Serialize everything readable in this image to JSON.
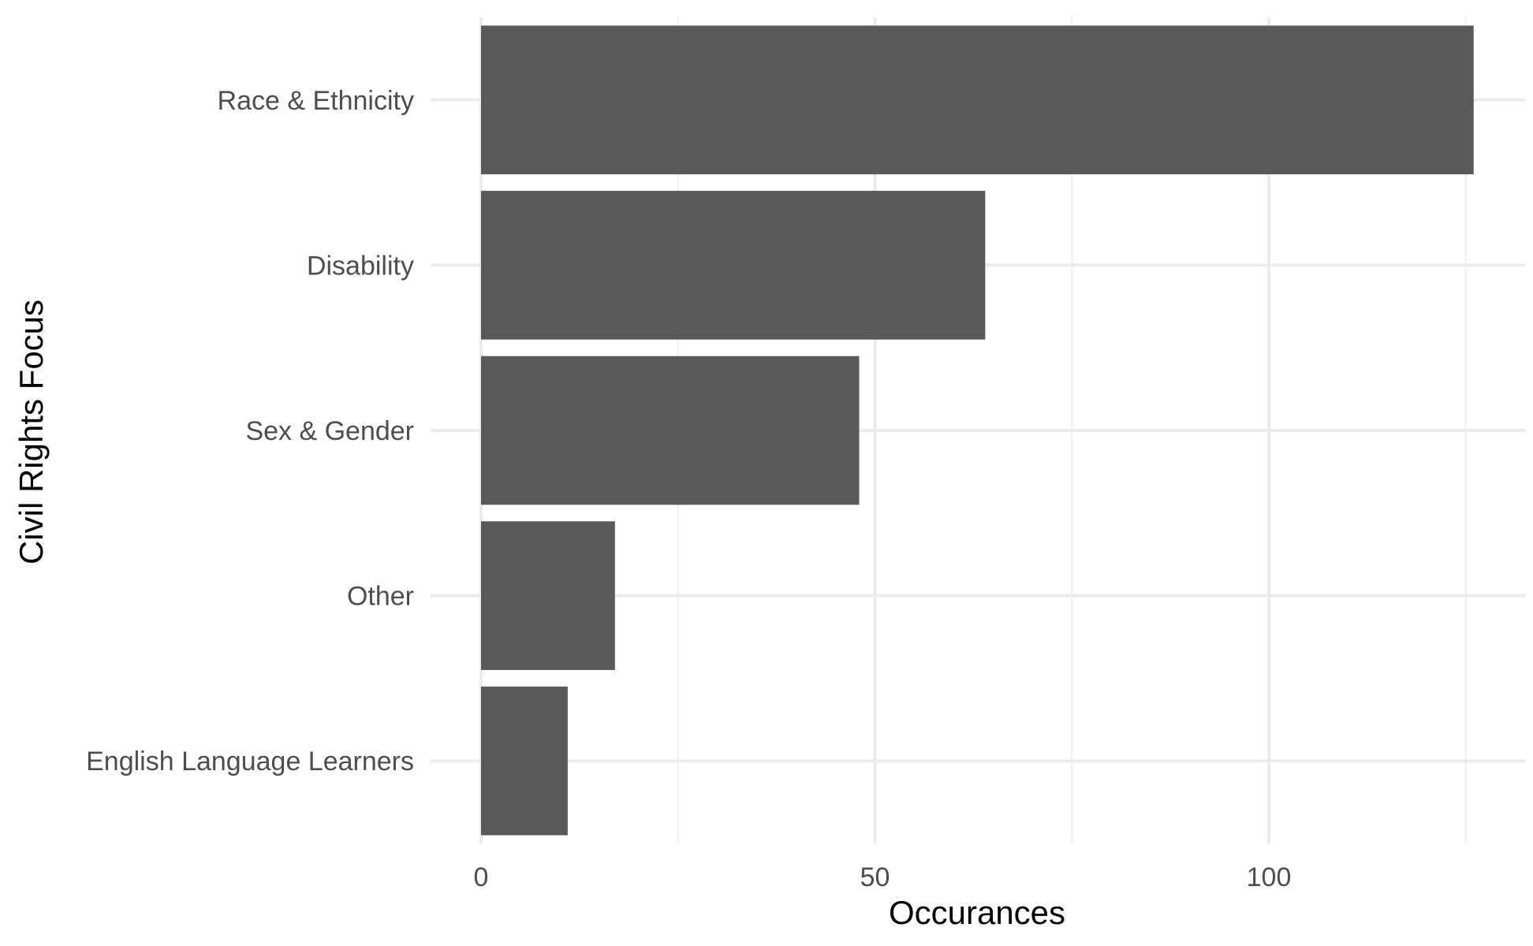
{
  "chart_data": {
    "type": "bar",
    "orientation": "horizontal",
    "categories": [
      "Race & Ethnicity",
      "Disability",
      "Sex & Gender",
      "Other",
      "English Language Learners"
    ],
    "values": [
      126,
      64,
      48,
      17,
      11
    ],
    "xlabel": "Occurances",
    "ylabel": "Civil Rights Focus",
    "xlim": [
      0,
      132
    ],
    "x_ticks": [
      0,
      50,
      100
    ],
    "x_tick_labels": [
      "0",
      "50",
      "100"
    ],
    "grid": true,
    "colors": {
      "bar": "#595959",
      "grid_major": "#ebebeb",
      "grid_minor": "#f2f2f2",
      "tick_text": "#4d4d4d"
    }
  }
}
